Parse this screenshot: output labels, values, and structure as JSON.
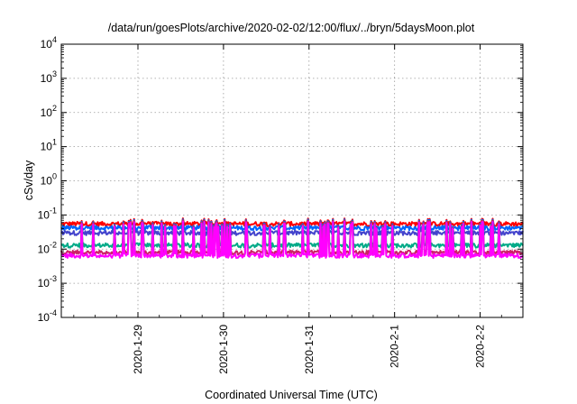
{
  "chart_data": {
    "type": "line",
    "title": "/data/run/goesPlots/archive/2020-02-02/12:00/flux/../bryn/5daysMoon.plot",
    "xlabel": "Coordinated Universal Time (UTC)",
    "ylabel": "cSv/day",
    "yscale": "log",
    "ylim": [
      0.0001,
      10000
    ],
    "y_ticks": [
      {
        "base": "10",
        "exp": "-4"
      },
      {
        "base": "10",
        "exp": "-3"
      },
      {
        "base": "10",
        "exp": "-2"
      },
      {
        "base": "10",
        "exp": "-1"
      },
      {
        "base": "10",
        "exp": "0"
      },
      {
        "base": "10",
        "exp": "1"
      },
      {
        "base": "10",
        "exp": "2"
      },
      {
        "base": "10",
        "exp": "3"
      },
      {
        "base": "10",
        "exp": "4"
      }
    ],
    "xlim": [
      "2020-01-28T02:30",
      "2020-02-02T12:00"
    ],
    "x_ticks": [
      "2020-1-29",
      "2020-1-30",
      "2020-1-31",
      "2020-2-1",
      "2020-2-2"
    ],
    "grid": true,
    "series": [
      {
        "color": "#ff0000",
        "baseline": 0.055,
        "spike": 0.08
      },
      {
        "color": "#0066ff",
        "baseline": 0.042,
        "spike": 0.075
      },
      {
        "color": "#4444cc",
        "baseline": 0.03,
        "spike": 0.07
      },
      {
        "color": "#00aa88",
        "baseline": 0.013,
        "spike": 0.07
      },
      {
        "color": "#cc2266",
        "baseline": 0.008,
        "spike": 0.07
      },
      {
        "color": "#ff00ff",
        "baseline": 0.0065,
        "spike": 0.065
      }
    ]
  }
}
